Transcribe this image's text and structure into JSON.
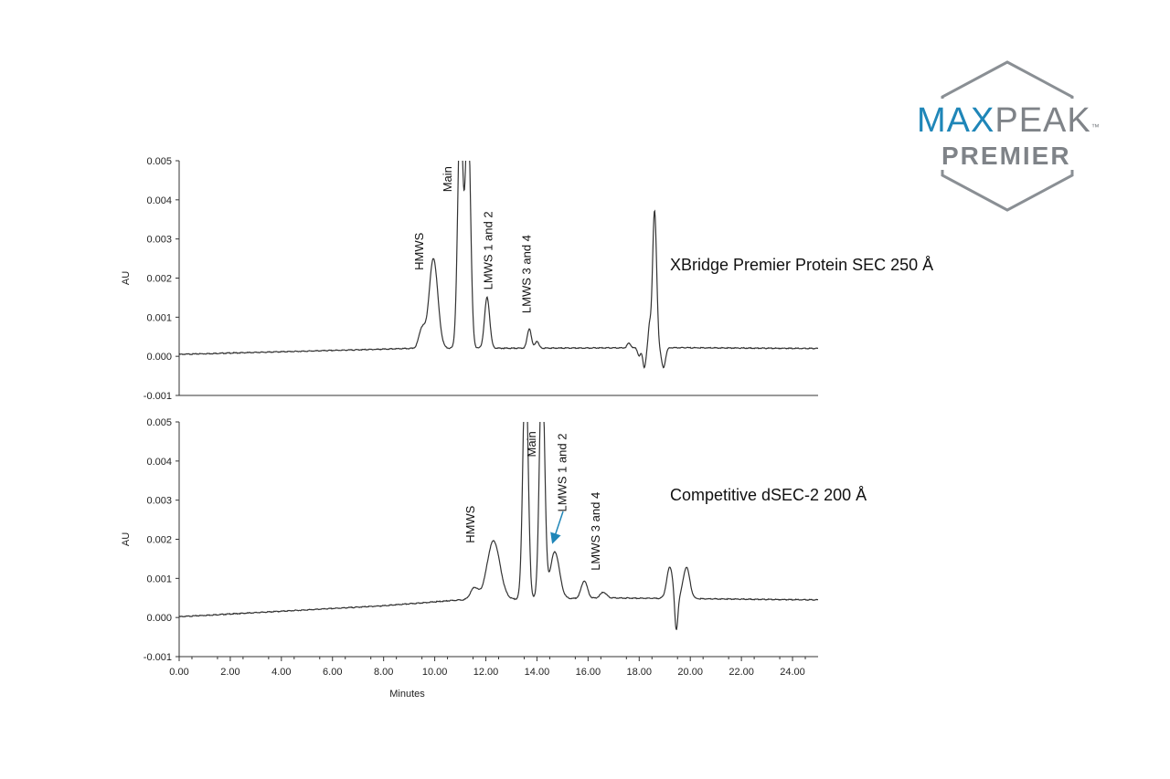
{
  "logo": {
    "brand_left": "MAX",
    "brand_right": "PEAK",
    "brand_sub": "PREMIER",
    "tm": "™",
    "colors": {
      "blue": "#1f86b8",
      "gray": "#7f8388",
      "hex_outline": "#8a8f94"
    }
  },
  "chart_data": [
    {
      "type": "line",
      "series_label": "XBridge Premier Protein SEC 250 Å",
      "xlabel": "",
      "ylabel": "AU",
      "xlim": [
        0,
        25
      ],
      "ylim": [
        -0.001,
        0.005
      ],
      "yticks": [
        "0.005",
        "0.004",
        "0.003",
        "0.002",
        "0.001",
        "0.000",
        "-0.001"
      ],
      "ytick_values": [
        0.005,
        0.004,
        0.003,
        0.002,
        0.001,
        0.0,
        -0.001
      ],
      "baseline": [
        [
          0,
          5e-05
        ],
        [
          9,
          0.0002
        ],
        [
          19.5,
          0.00022
        ],
        [
          25,
          0.0002
        ]
      ],
      "peaks": [
        {
          "x": 9.5,
          "height": 0.0005,
          "width": 0.12
        },
        {
          "x": 9.95,
          "height": 0.0023,
          "width": 0.17
        },
        {
          "x": 11.0,
          "height": 0.0062,
          "width": 0.1
        },
        {
          "x": 11.3,
          "height": 0.0062,
          "width": 0.1
        },
        {
          "x": 12.05,
          "height": 0.0013,
          "width": 0.1
        },
        {
          "x": 13.7,
          "height": 0.0005,
          "width": 0.08
        },
        {
          "x": 14.0,
          "height": 0.00018,
          "width": 0.07
        },
        {
          "x": 17.6,
          "height": 0.00012,
          "width": 0.07
        },
        {
          "x": 18.0,
          "height": -0.0002,
          "width": 0.06
        },
        {
          "x": 18.2,
          "height": -0.0005,
          "width": 0.06
        },
        {
          "x": 18.4,
          "height": 0.0005,
          "width": 0.05
        },
        {
          "x": 18.6,
          "height": 0.0035,
          "width": 0.08
        },
        {
          "x": 18.95,
          "height": -0.0005,
          "width": 0.08
        }
      ],
      "annotations": [
        {
          "text": "HMWS",
          "x": 9.55,
          "y": 0.0022
        },
        {
          "text": "Main",
          "x": 10.65,
          "y": 0.0042
        },
        {
          "text": "LMWS 1 and 2",
          "x": 12.25,
          "y": 0.0017
        },
        {
          "text": "LMWS 3 and 4",
          "x": 13.75,
          "y": 0.0011
        }
      ]
    },
    {
      "type": "line",
      "series_label": "Competitive dSEC-2 200 Å",
      "xlabel": "Minutes",
      "ylabel": "AU",
      "xlim": [
        0,
        25
      ],
      "ylim": [
        -0.001,
        0.005
      ],
      "xticks": [
        "0.00",
        "2.00",
        "4.00",
        "6.00",
        "8.00",
        "10.00",
        "12.00",
        "14.00",
        "16.00",
        "18.00",
        "20.00",
        "22.00",
        "24.00"
      ],
      "xtick_values": [
        0,
        2,
        4,
        6,
        8,
        10,
        12,
        14,
        16,
        18,
        20,
        22,
        24
      ],
      "yticks": [
        "0.005",
        "0.004",
        "0.003",
        "0.002",
        "0.001",
        "0.000",
        "-0.001"
      ],
      "ytick_values": [
        0.005,
        0.004,
        0.003,
        0.002,
        0.001,
        0.0,
        -0.001
      ],
      "baseline": [
        [
          0,
          2e-05
        ],
        [
          8,
          0.0003
        ],
        [
          11,
          0.00045
        ],
        [
          17,
          0.0005
        ],
        [
          25,
          0.00045
        ]
      ],
      "peaks": [
        {
          "x": 11.55,
          "height": 0.0003,
          "width": 0.15
        },
        {
          "x": 12.3,
          "height": 0.0015,
          "width": 0.25
        },
        {
          "x": 13.55,
          "height": 0.0062,
          "width": 0.1
        },
        {
          "x": 14.2,
          "height": 0.0062,
          "width": 0.1
        },
        {
          "x": 14.7,
          "height": 0.0012,
          "width": 0.18
        },
        {
          "x": 15.85,
          "height": 0.00045,
          "width": 0.12
        },
        {
          "x": 16.6,
          "height": 0.00015,
          "width": 0.12
        },
        {
          "x": 19.2,
          "height": 0.0008,
          "width": 0.12
        },
        {
          "x": 19.45,
          "height": -0.0009,
          "width": 0.06
        },
        {
          "x": 19.85,
          "height": 0.0008,
          "width": 0.13
        }
      ],
      "annotations": [
        {
          "text": "HMWS",
          "x": 11.55,
          "y": 0.0019
        },
        {
          "text": "Main",
          "x": 13.95,
          "y": 0.0041
        },
        {
          "text": "LMWS 1 and 2",
          "x": 15.15,
          "y": 0.0027
        },
        {
          "text": "LMWS 3 and 4",
          "x": 16.45,
          "y": 0.0012
        }
      ]
    }
  ]
}
